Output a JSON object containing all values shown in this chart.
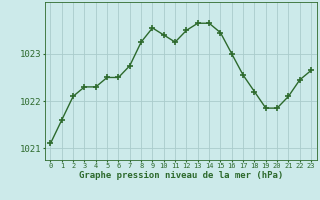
{
  "x": [
    0,
    1,
    2,
    3,
    4,
    5,
    6,
    7,
    8,
    9,
    10,
    11,
    12,
    13,
    14,
    15,
    16,
    17,
    18,
    19,
    20,
    21,
    22,
    23
  ],
  "y": [
    1021.1,
    1021.6,
    1022.1,
    1022.3,
    1022.3,
    1022.5,
    1022.5,
    1022.75,
    1023.25,
    1023.55,
    1023.4,
    1023.25,
    1023.5,
    1023.65,
    1023.65,
    1023.45,
    1023.0,
    1022.55,
    1022.2,
    1021.85,
    1021.85,
    1022.1,
    1022.45,
    1022.65
  ],
  "line_color": "#2d6a2d",
  "marker": "+",
  "marker_size": 4,
  "marker_lw": 1.2,
  "line_width": 1.0,
  "background_color": "#cceaea",
  "grid_color": "#aacccc",
  "ylim": [
    1020.75,
    1024.1
  ],
  "yticks": [
    1021,
    1022,
    1023
  ],
  "xlabel_text": "Graphe pression niveau de la mer (hPa)",
  "xlim": [
    -0.5,
    23.5
  ],
  "xtick_labels": [
    "0",
    "1",
    "2",
    "3",
    "4",
    "5",
    "6",
    "7",
    "8",
    "9",
    "10",
    "11",
    "12",
    "13",
    "14",
    "15",
    "16",
    "17",
    "18",
    "19",
    "20",
    "21",
    "22",
    "23"
  ],
  "ytick_fontsize": 6.5,
  "xtick_fontsize": 5.0,
  "xlabel_fontsize": 6.5
}
